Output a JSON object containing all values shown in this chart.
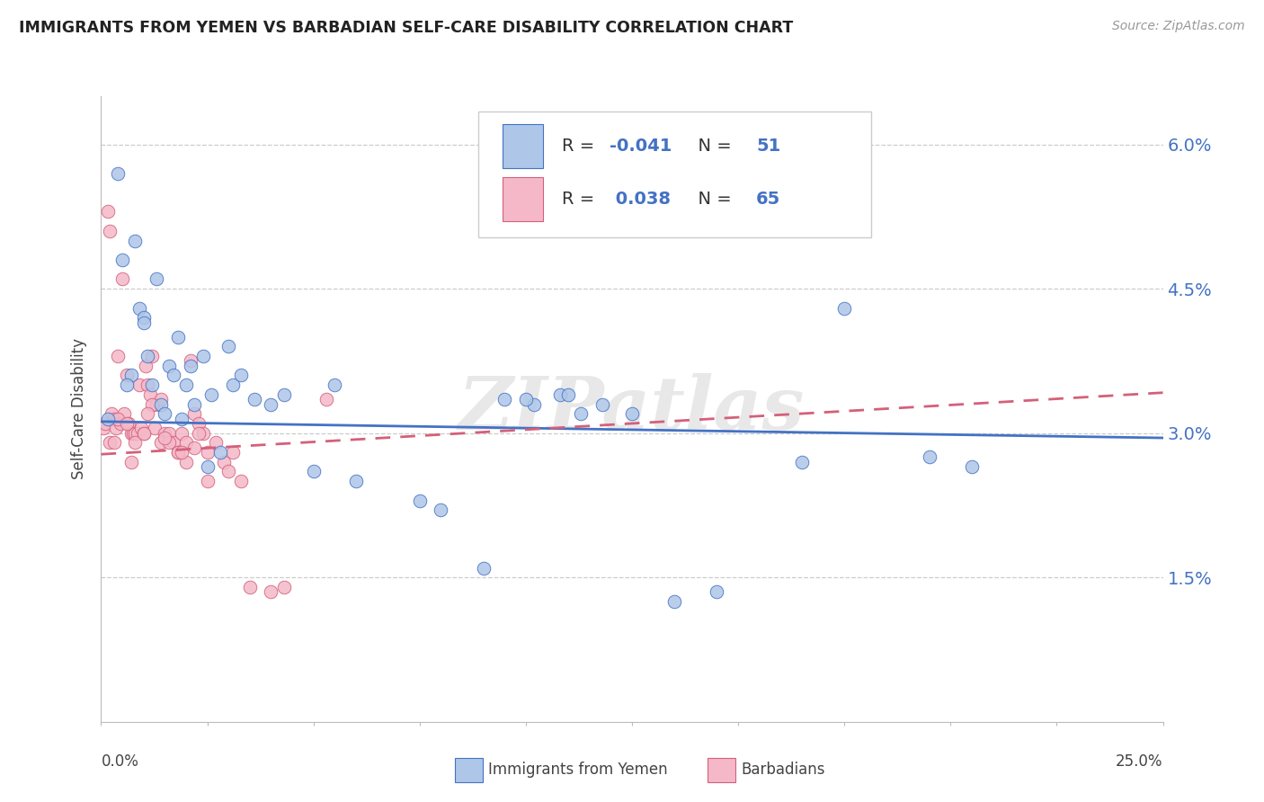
{
  "title": "IMMIGRANTS FROM YEMEN VS BARBADIAN SELF-CARE DISABILITY CORRELATION CHART",
  "source": "Source: ZipAtlas.com",
  "ylabel": "Self-Care Disability",
  "ytick_values": [
    1.5,
    3.0,
    4.5,
    6.0
  ],
  "xlim": [
    0,
    25
  ],
  "ylim": [
    0,
    6.5
  ],
  "legend_label1": "Immigrants from Yemen",
  "legend_label2": "Barbadians",
  "legend_r1": "-0.041",
  "legend_n1": "51",
  "legend_r2": "0.038",
  "legend_n2": "65",
  "color_blue": "#aec6e8",
  "color_pink": "#f4b8c8",
  "line_color_blue": "#4472c4",
  "line_color_pink": "#d4607a",
  "watermark": "ZIPatlas",
  "blue_x": [
    0.15,
    0.4,
    0.5,
    0.7,
    0.8,
    0.9,
    1.0,
    1.1,
    1.2,
    1.3,
    1.4,
    1.5,
    1.6,
    1.7,
    1.8,
    2.0,
    2.1,
    2.2,
    2.4,
    2.6,
    2.8,
    3.1,
    3.3,
    3.6,
    4.3,
    5.5,
    7.5,
    9.5,
    10.2,
    10.8,
    11.3,
    11.8,
    12.5,
    14.5,
    17.5,
    19.5,
    20.5,
    2.5,
    0.6,
    1.0,
    1.9,
    3.0,
    4.0,
    5.0,
    6.0,
    8.0,
    9.0,
    10.0,
    11.0,
    13.5,
    16.5
  ],
  "blue_y": [
    3.15,
    5.7,
    4.8,
    3.6,
    5.0,
    4.3,
    4.2,
    3.8,
    3.5,
    4.6,
    3.3,
    3.2,
    3.7,
    3.6,
    4.0,
    3.5,
    3.7,
    3.3,
    3.8,
    3.4,
    2.8,
    3.5,
    3.6,
    3.35,
    3.4,
    3.5,
    2.3,
    3.35,
    3.3,
    3.4,
    3.2,
    3.3,
    3.2,
    1.35,
    4.3,
    2.75,
    2.65,
    2.65,
    3.5,
    4.15,
    3.15,
    3.9,
    3.3,
    2.6,
    2.5,
    2.2,
    1.6,
    3.35,
    3.4,
    1.25,
    2.7
  ],
  "pink_x": [
    0.05,
    0.1,
    0.15,
    0.2,
    0.25,
    0.3,
    0.35,
    0.4,
    0.45,
    0.5,
    0.55,
    0.6,
    0.65,
    0.7,
    0.75,
    0.8,
    0.85,
    0.9,
    0.95,
    1.0,
    1.05,
    1.1,
    1.15,
    1.2,
    1.25,
    1.3,
    1.4,
    1.5,
    1.6,
    1.7,
    1.8,
    1.9,
    2.0,
    2.1,
    2.2,
    2.3,
    2.4,
    2.5,
    2.7,
    2.9,
    3.1,
    3.5,
    4.0,
    4.3,
    5.3,
    0.2,
    0.4,
    0.6,
    0.8,
    1.0,
    1.2,
    1.4,
    1.6,
    1.8,
    2.0,
    2.2,
    2.5,
    3.0,
    3.3,
    0.3,
    0.7,
    1.1,
    1.5,
    1.9,
    2.3
  ],
  "pink_y": [
    3.05,
    3.1,
    5.3,
    5.1,
    3.2,
    3.15,
    3.05,
    3.8,
    3.1,
    4.6,
    3.2,
    3.6,
    3.1,
    3.0,
    3.0,
    3.0,
    3.0,
    3.5,
    3.05,
    3.0,
    3.7,
    3.5,
    3.4,
    3.8,
    3.05,
    3.3,
    3.35,
    3.0,
    3.0,
    2.9,
    2.8,
    3.0,
    2.9,
    3.75,
    3.2,
    3.1,
    3.0,
    2.8,
    2.9,
    2.7,
    2.8,
    1.4,
    1.35,
    1.4,
    3.35,
    2.9,
    3.15,
    3.1,
    2.9,
    3.0,
    3.3,
    2.9,
    2.9,
    2.8,
    2.7,
    2.85,
    2.5,
    2.6,
    2.5,
    2.9,
    2.7,
    3.2,
    2.95,
    2.8,
    3.0
  ]
}
